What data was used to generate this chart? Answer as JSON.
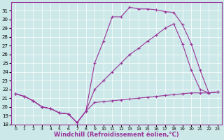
{
  "xlabel": "Windchill (Refroidissement éolien,°C)",
  "background_color": "#cce8e8",
  "line_color": "#993399",
  "xlim": [
    -0.5,
    23.5
  ],
  "ylim": [
    18,
    32
  ],
  "yticks": [
    18,
    19,
    20,
    21,
    22,
    23,
    24,
    25,
    26,
    27,
    28,
    29,
    30,
    31
  ],
  "xticks": [
    0,
    1,
    2,
    3,
    4,
    5,
    6,
    7,
    8,
    9,
    10,
    11,
    12,
    13,
    14,
    15,
    16,
    17,
    18,
    19,
    20,
    21,
    22,
    23
  ],
  "line1_x": [
    0,
    1,
    2,
    3,
    4,
    5,
    6,
    7,
    8,
    9,
    10,
    11,
    12,
    13,
    14,
    15,
    16,
    17,
    18,
    19,
    20,
    21,
    22,
    23
  ],
  "line1_y": [
    21.5,
    21.2,
    20.7,
    20.0,
    19.8,
    19.3,
    19.2,
    18.2,
    19.5,
    20.5,
    20.6,
    20.7,
    20.8,
    20.9,
    21.0,
    21.1,
    21.2,
    21.3,
    21.4,
    21.5,
    21.6,
    21.6,
    21.6,
    21.7
  ],
  "line2_x": [
    0,
    1,
    2,
    3,
    4,
    5,
    6,
    7,
    8,
    9,
    10,
    11,
    12,
    13,
    14,
    15,
    16,
    17,
    18,
    19,
    20,
    21,
    22,
    23
  ],
  "line2_y": [
    21.5,
    21.2,
    20.7,
    20.0,
    19.8,
    19.3,
    19.2,
    18.2,
    19.5,
    22.0,
    23.0,
    24.0,
    25.0,
    26.0,
    26.7,
    27.5,
    28.2,
    29.0,
    29.5,
    27.2,
    24.2,
    22.0,
    21.6,
    21.7
  ],
  "line3_x": [
    0,
    1,
    2,
    3,
    4,
    5,
    6,
    7,
    8,
    9,
    10,
    11,
    12,
    13,
    14,
    15,
    16,
    17,
    18,
    19,
    20,
    21,
    22,
    23
  ],
  "line3_y": [
    21.5,
    21.2,
    20.7,
    20.0,
    19.8,
    19.3,
    19.2,
    18.2,
    19.5,
    25.0,
    27.5,
    30.3,
    30.3,
    31.4,
    31.2,
    31.2,
    31.1,
    30.9,
    30.8,
    29.4,
    27.2,
    24.2,
    21.6,
    21.7
  ],
  "grid_color": "#aad4d4",
  "spine_color": "#993399",
  "tick_fontsize": 5,
  "xlabel_fontsize": 6
}
